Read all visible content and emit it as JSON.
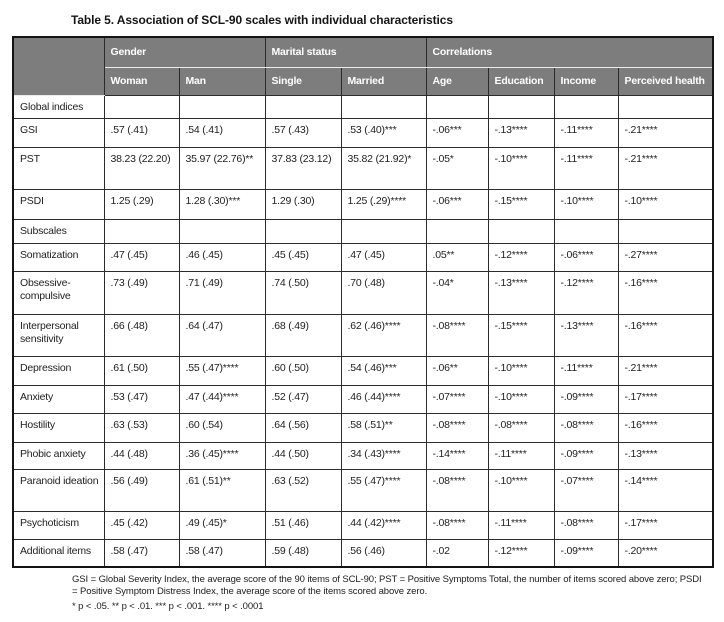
{
  "title": "Table 5. Association of SCL-90 scales with individual characteristics",
  "colors": {
    "header_bg": "#7d7d7d",
    "header_text": "#ffffff",
    "grid_line": "#2b2b2b",
    "body_text": "#1e1e1e"
  },
  "table": {
    "groups": [
      "Gender",
      "Marital status",
      "Correlations"
    ],
    "columns": [
      "Woman",
      "Man",
      "Single",
      "Married",
      "Age",
      "Education",
      "Income",
      "Perceived health"
    ],
    "rows": [
      {
        "label": "Global indices",
        "section": true,
        "cells": [
          "",
          "",
          "",
          "",
          "",
          "",
          "",
          ""
        ]
      },
      {
        "label": "GSI",
        "section": false,
        "cells": [
          ".57 (.41)",
          ".54 (.41)",
          ".57 (.43)",
          ".53 (.40)***",
          "-.06***",
          "-.13****",
          "-.11****",
          "-.21****"
        ]
      },
      {
        "label": "PST",
        "section": false,
        "cells": [
          "38.23 (22.20)",
          "35.97 (22.76)**",
          "37.83 (23.12)",
          "35.82 (21.92)*",
          "-.05*",
          "-.10****",
          "-.11****",
          "-.21****"
        ]
      },
      {
        "label": "PSDI",
        "section": false,
        "cells": [
          "1.25 (.29)",
          "1.28 (.30)***",
          "1.29 (.30)",
          "1.25 (.29)****",
          "-.06***",
          "-.15****",
          "-.10****",
          "-.10****"
        ]
      },
      {
        "label": "Subscales",
        "section": true,
        "cells": [
          "",
          "",
          "",
          "",
          "",
          "",
          "",
          ""
        ]
      },
      {
        "label": "Somatization",
        "section": false,
        "cells": [
          ".47 (.45)",
          ".46 (.45)",
          ".45 (.45)",
          ".47 (.45)",
          ".05**",
          "-.12****",
          "-.06****",
          "-.27****"
        ]
      },
      {
        "label": "Obsessive-compulsive",
        "section": false,
        "cells": [
          ".73 (.49)",
          ".71 (.49)",
          ".74 (.50)",
          ".70 (.48)",
          "-.04*",
          "-.13****",
          "-.12****",
          "-.16****"
        ]
      },
      {
        "label": "Interpersonal sensitivity",
        "section": false,
        "cells": [
          ".66 (.48)",
          ".64 (.47)",
          ".68 (.49)",
          ".62 (.46)****",
          "-.08****",
          "-.15****",
          "-.13****",
          "-.16****"
        ]
      },
      {
        "label": "Depression",
        "section": false,
        "cells": [
          ".61 (.50)",
          ".55 (.47)****",
          ".60 (.50)",
          ".54 (.46)***",
          "-.06**",
          "-.10****",
          "-.11****",
          "-.21****"
        ]
      },
      {
        "label": "Anxiety",
        "section": false,
        "cells": [
          ".53 (.47)",
          ".47 (.44)****",
          ".52 (.47)",
          ".46 (.44)****",
          "-.07****",
          "-.10****",
          "-.09****",
          "-.17****"
        ]
      },
      {
        "label": "Hostility",
        "section": false,
        "cells": [
          ".63 (.53)",
          ".60 (.54)",
          ".64 (.56)",
          ".58 (.51)**",
          "-.08****",
          "-.08****",
          "-.08****",
          "-.16****"
        ]
      },
      {
        "label": "Phobic anxiety",
        "section": false,
        "cells": [
          ".44 (.48)",
          ".36 (.45)****",
          ".44 (.50)",
          ".34 (.43)****",
          "-.14****",
          "-.11****",
          "-.09****",
          "-.13****"
        ]
      },
      {
        "label": "Paranoid ideation",
        "section": false,
        "cells": [
          ".56 (.49)",
          ".61 (.51)**",
          ".63 (.52)",
          ".55 (.47)****",
          "-.08****",
          "-.10****",
          "-.07****",
          "-.14****"
        ]
      },
      {
        "label": "Psychoticism",
        "section": false,
        "cells": [
          ".45 (.42)",
          ".49 (.45)*",
          ".51 (.46)",
          ".44 (.42)****",
          "-.08****",
          "-.11****",
          "-.08****",
          "-.17****"
        ]
      },
      {
        "label": "Additional items",
        "section": false,
        "cells": [
          ".58 (.47)",
          ".58 (.47)",
          ".59 (.48)",
          ".56 (.46)",
          "-.02",
          "-.12****",
          "-.09****",
          "-.20****"
        ]
      }
    ]
  },
  "footnotes": {
    "abbreviations": "GSI = Global Severity Index, the average score of the 90 items of SCL-90; PST = Positive Symptoms Total, the number of items scored above zero; PSDI = Positive Symptom Distress Index, the average score of the items scored above zero.",
    "significance": "* p < .05. ** p < .01. *** p < .001. **** p < .0001"
  }
}
